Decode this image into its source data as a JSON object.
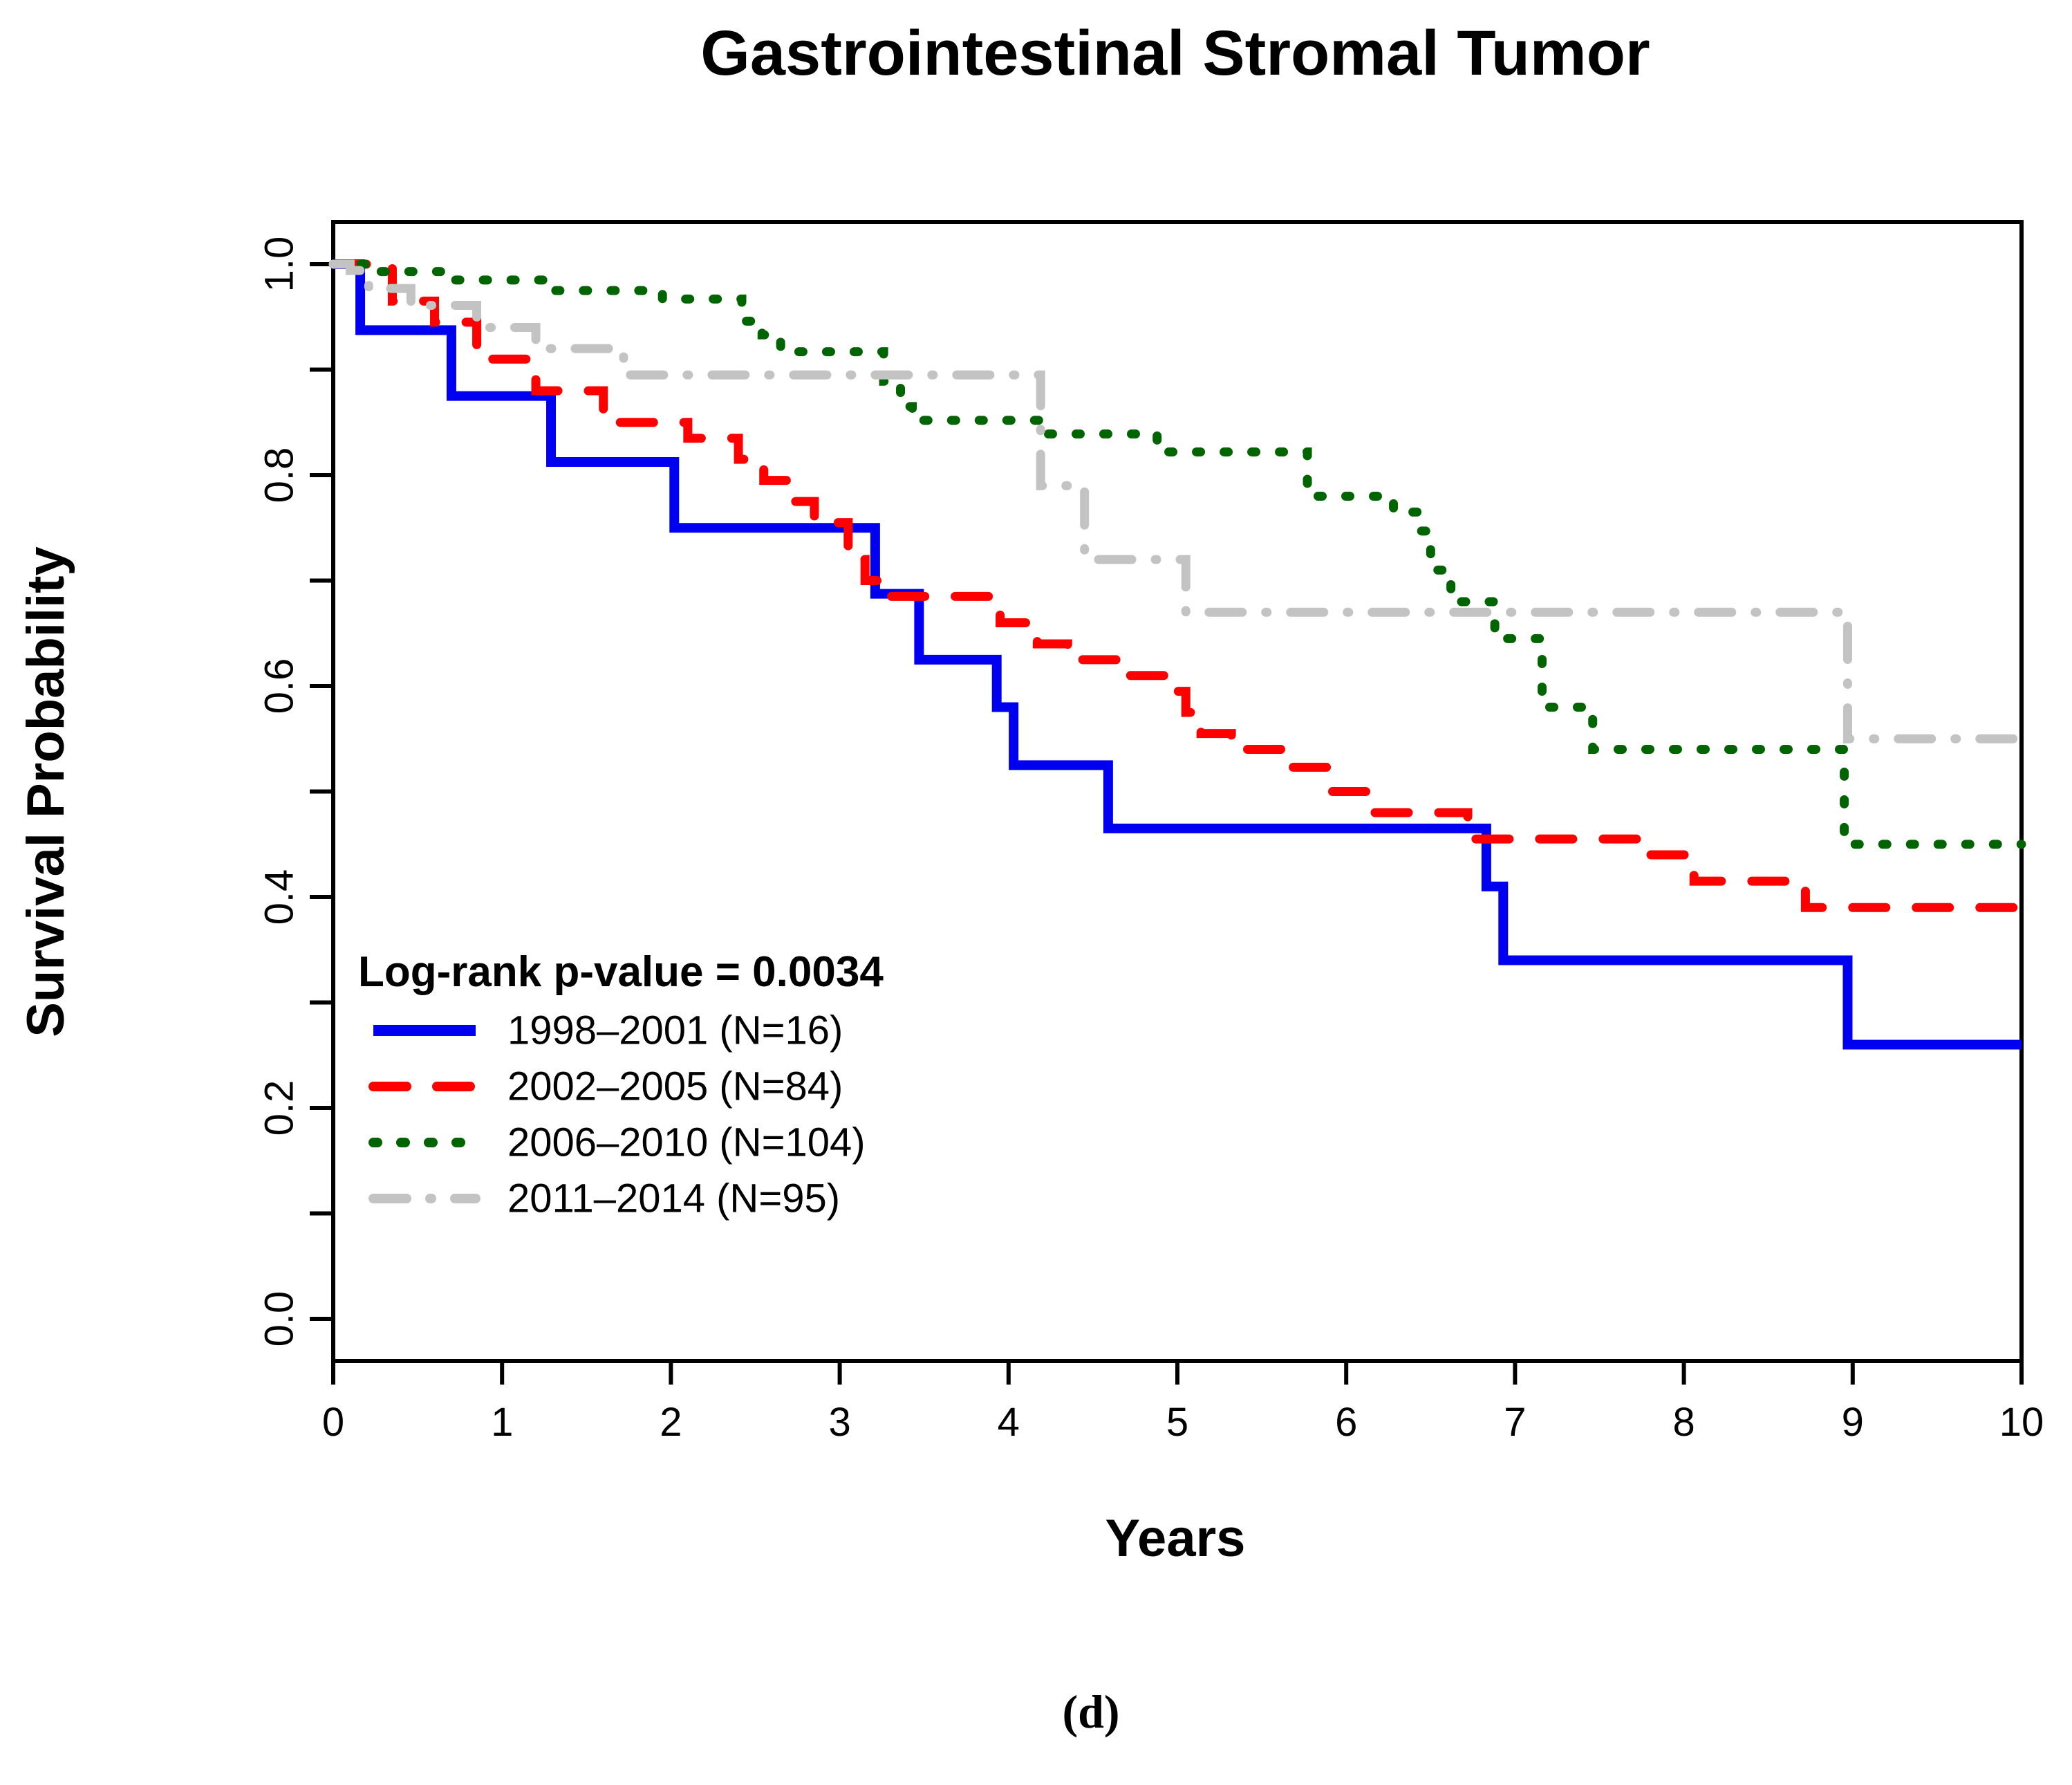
{
  "figure": {
    "caption": "(d)"
  },
  "chart_data": {
    "type": "line",
    "subtype": "kaplan-meier-step",
    "title": "Gastrointestinal Stromal Tumor",
    "xlabel": "Years",
    "ylabel": "Survival Probability",
    "xlim": [
      0,
      10
    ],
    "ylim": [
      0,
      1
    ],
    "grid": false,
    "frame_box": true,
    "legend_position": "lower-left",
    "x_ticks": [
      {
        "v": 0,
        "label": "0"
      },
      {
        "v": 1,
        "label": "1"
      },
      {
        "v": 2,
        "label": "2"
      },
      {
        "v": 3,
        "label": "3"
      },
      {
        "v": 4,
        "label": "4"
      },
      {
        "v": 5,
        "label": "5"
      },
      {
        "v": 6,
        "label": "6"
      },
      {
        "v": 7,
        "label": "7"
      },
      {
        "v": 8,
        "label": "8"
      },
      {
        "v": 9,
        "label": "9"
      },
      {
        "v": 10,
        "label": "10"
      }
    ],
    "y_ticks": [
      {
        "v": 0.0,
        "label": "0.0"
      },
      {
        "v": 0.1,
        "label": ""
      },
      {
        "v": 0.2,
        "label": "0.2"
      },
      {
        "v": 0.3,
        "label": ""
      },
      {
        "v": 0.4,
        "label": "0.4"
      },
      {
        "v": 0.5,
        "label": ""
      },
      {
        "v": 0.6,
        "label": "0.6"
      },
      {
        "v": 0.7,
        "label": ""
      },
      {
        "v": 0.8,
        "label": "0.8"
      },
      {
        "v": 0.9,
        "label": ""
      },
      {
        "v": 1.0,
        "label": "1.0"
      }
    ],
    "annotation": {
      "text": "Log-rank p-value = 0.0034",
      "color": "#6A5ACD",
      "x_year": 0.25,
      "y_prob": 0.33
    },
    "series": [
      {
        "name": "1998–2001 (N=16)",
        "color": "#0000F0",
        "style": "solid",
        "points": [
          [
            0,
            1.0
          ],
          [
            0.16,
            0.9375
          ],
          [
            0.7,
            0.875
          ],
          [
            1.29,
            0.8125
          ],
          [
            2.02,
            0.75
          ],
          [
            3.21,
            0.6875
          ],
          [
            3.47,
            0.625
          ],
          [
            3.93,
            0.58
          ],
          [
            4.03,
            0.525
          ],
          [
            4.59,
            0.465
          ],
          [
            6.83,
            0.41
          ],
          [
            6.93,
            0.34
          ],
          [
            8.97,
            0.26
          ]
        ]
      },
      {
        "name": "2002–2005 (N=84)",
        "color": "#FF0000",
        "style": "dashed",
        "points": [
          [
            0,
            1.0
          ],
          [
            0.35,
            0.965
          ],
          [
            0.6,
            0.945
          ],
          [
            0.85,
            0.91
          ],
          [
            1.2,
            0.88
          ],
          [
            1.6,
            0.85
          ],
          [
            2.1,
            0.835
          ],
          [
            2.4,
            0.815
          ],
          [
            2.55,
            0.795
          ],
          [
            2.7,
            0.775
          ],
          [
            2.85,
            0.755
          ],
          [
            3.05,
            0.72
          ],
          [
            3.15,
            0.7
          ],
          [
            3.3,
            0.685
          ],
          [
            3.95,
            0.66
          ],
          [
            4.17,
            0.64
          ],
          [
            4.35,
            0.625
          ],
          [
            4.65,
            0.61
          ],
          [
            4.94,
            0.595
          ],
          [
            5.05,
            0.575
          ],
          [
            5.14,
            0.555
          ],
          [
            5.32,
            0.54
          ],
          [
            5.66,
            0.523
          ],
          [
            5.9,
            0.5
          ],
          [
            6.15,
            0.48
          ],
          [
            6.72,
            0.455
          ],
          [
            7.72,
            0.44
          ],
          [
            8.06,
            0.415
          ],
          [
            8.72,
            0.39
          ]
        ]
      },
      {
        "name": "2006–2010 (N=104)",
        "color": "#006400",
        "style": "dotted",
        "points": [
          [
            0,
            1.0
          ],
          [
            0.2,
            0.993
          ],
          [
            0.65,
            0.985
          ],
          [
            1.3,
            0.975
          ],
          [
            1.95,
            0.967
          ],
          [
            2.42,
            0.946
          ],
          [
            2.54,
            0.933
          ],
          [
            2.65,
            0.917
          ],
          [
            3.26,
            0.889
          ],
          [
            3.36,
            0.865
          ],
          [
            3.43,
            0.852
          ],
          [
            4.21,
            0.839
          ],
          [
            4.88,
            0.822
          ],
          [
            5.77,
            0.78
          ],
          [
            6.28,
            0.765
          ],
          [
            6.42,
            0.747
          ],
          [
            6.5,
            0.71
          ],
          [
            6.62,
            0.68
          ],
          [
            6.88,
            0.645
          ],
          [
            7.16,
            0.58
          ],
          [
            7.46,
            0.54
          ],
          [
            8.95,
            0.45
          ]
        ]
      },
      {
        "name": "2011–2014 (N=95)",
        "color": "#C3C3C3",
        "style": "dashdot",
        "points": [
          [
            0,
            1.0
          ],
          [
            0.1,
            0.994
          ],
          [
            0.21,
            0.977
          ],
          [
            0.46,
            0.961
          ],
          [
            0.85,
            0.94
          ],
          [
            1.2,
            0.92
          ],
          [
            1.72,
            0.895
          ],
          [
            4.19,
            0.79
          ],
          [
            4.45,
            0.72
          ],
          [
            5.05,
            0.67
          ],
          [
            8.97,
            0.55
          ]
        ]
      }
    ]
  }
}
